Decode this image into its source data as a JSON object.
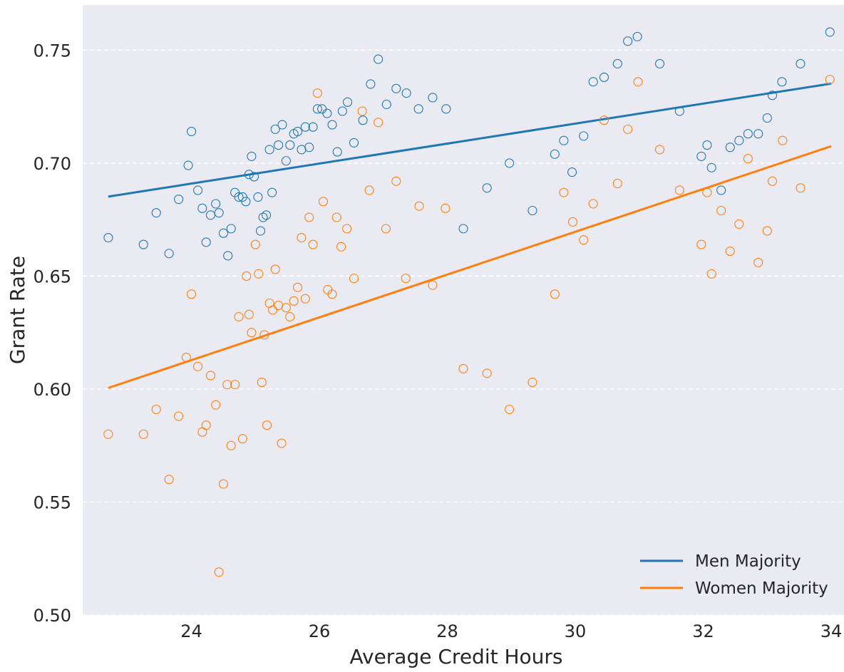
{
  "chart_data": {
    "type": "scatter",
    "title": "",
    "xlabel": "Average Credit Hours",
    "ylabel": "Grant Rate",
    "xlim": [
      22.3,
      34.2
    ],
    "ylim": [
      0.5,
      0.77
    ],
    "x_ticks": [
      24,
      26,
      28,
      30,
      32,
      34
    ],
    "x_tick_labels": [
      "24",
      "26",
      "28",
      "30",
      "32",
      "34"
    ],
    "y_ticks": [
      0.5,
      0.55,
      0.6,
      0.65,
      0.7,
      0.75
    ],
    "y_tick_labels": [
      "0.50",
      "0.55",
      "0.60",
      "0.65",
      "0.70",
      "0.75"
    ],
    "grid": "horizontal dashed, white",
    "background": "#eaeaf2",
    "legend": {
      "position": "bottom-right",
      "entries": [
        "Men Majority",
        "Women Majority"
      ]
    },
    "series": [
      {
        "name": "Men Majority",
        "color": "#1f77b4",
        "marker": "open-circle",
        "trend_line": {
          "x": [
            22.7,
            34.0
          ],
          "y": [
            0.6852,
            0.7352
          ]
        },
        "points": [
          [
            22.7,
            0.667
          ],
          [
            23.25,
            0.664
          ],
          [
            23.45,
            0.678
          ],
          [
            23.65,
            0.66
          ],
          [
            23.8,
            0.684
          ],
          [
            23.95,
            0.699
          ],
          [
            24.0,
            0.714
          ],
          [
            24.1,
            0.688
          ],
          [
            24.17,
            0.68
          ],
          [
            24.23,
            0.665
          ],
          [
            24.3,
            0.677
          ],
          [
            24.38,
            0.682
          ],
          [
            24.43,
            0.678
          ],
          [
            24.5,
            0.669
          ],
          [
            24.57,
            0.659
          ],
          [
            24.62,
            0.671
          ],
          [
            24.68,
            0.687
          ],
          [
            24.74,
            0.685
          ],
          [
            24.8,
            0.685
          ],
          [
            24.85,
            0.683
          ],
          [
            24.9,
            0.695
          ],
          [
            24.94,
            0.703
          ],
          [
            24.98,
            0.694
          ],
          [
            25.04,
            0.685
          ],
          [
            25.08,
            0.67
          ],
          [
            25.12,
            0.676
          ],
          [
            25.17,
            0.677
          ],
          [
            25.22,
            0.706
          ],
          [
            25.26,
            0.687
          ],
          [
            25.31,
            0.715
          ],
          [
            25.36,
            0.708
          ],
          [
            25.42,
            0.717
          ],
          [
            25.48,
            0.701
          ],
          [
            25.54,
            0.708
          ],
          [
            25.6,
            0.713
          ],
          [
            25.66,
            0.714
          ],
          [
            25.72,
            0.706
          ],
          [
            25.78,
            0.716
          ],
          [
            25.84,
            0.707
          ],
          [
            25.9,
            0.716
          ],
          [
            25.97,
            0.724
          ],
          [
            26.04,
            0.724
          ],
          [
            26.12,
            0.722
          ],
          [
            26.2,
            0.717
          ],
          [
            26.28,
            0.705
          ],
          [
            26.36,
            0.723
          ],
          [
            26.44,
            0.727
          ],
          [
            26.54,
            0.709
          ],
          [
            26.68,
            0.719
          ],
          [
            26.8,
            0.735
          ],
          [
            26.92,
            0.746
          ],
          [
            27.05,
            0.726
          ],
          [
            27.2,
            0.733
          ],
          [
            27.36,
            0.731
          ],
          [
            27.55,
            0.724
          ],
          [
            27.77,
            0.729
          ],
          [
            27.98,
            0.724
          ],
          [
            28.25,
            0.671
          ],
          [
            28.62,
            0.689
          ],
          [
            28.97,
            0.7
          ],
          [
            29.33,
            0.679
          ],
          [
            29.68,
            0.704
          ],
          [
            29.82,
            0.71
          ],
          [
            29.95,
            0.696
          ],
          [
            30.13,
            0.712
          ],
          [
            30.28,
            0.736
          ],
          [
            30.45,
            0.738
          ],
          [
            30.66,
            0.744
          ],
          [
            30.82,
            0.754
          ],
          [
            30.97,
            0.756
          ],
          [
            31.32,
            0.744
          ],
          [
            31.63,
            0.723
          ],
          [
            31.97,
            0.703
          ],
          [
            32.06,
            0.708
          ],
          [
            32.13,
            0.698
          ],
          [
            32.28,
            0.688
          ],
          [
            32.42,
            0.707
          ],
          [
            32.56,
            0.71
          ],
          [
            32.7,
            0.713
          ],
          [
            32.86,
            0.713
          ],
          [
            33.0,
            0.72
          ],
          [
            33.08,
            0.73
          ],
          [
            33.23,
            0.736
          ],
          [
            33.52,
            0.744
          ],
          [
            33.98,
            0.758
          ]
        ]
      },
      {
        "name": "Women Majority",
        "color": "#ff7f0e",
        "marker": "open-circle",
        "trend_line": {
          "x": [
            22.7,
            34.0
          ],
          "y": [
            0.6005,
            0.7075
          ]
        },
        "points": [
          [
            22.7,
            0.58
          ],
          [
            23.25,
            0.58
          ],
          [
            23.45,
            0.591
          ],
          [
            23.65,
            0.56
          ],
          [
            23.8,
            0.588
          ],
          [
            23.92,
            0.614
          ],
          [
            24.0,
            0.642
          ],
          [
            24.1,
            0.61
          ],
          [
            24.17,
            0.581
          ],
          [
            24.23,
            0.584
          ],
          [
            24.3,
            0.606
          ],
          [
            24.38,
            0.593
          ],
          [
            24.43,
            0.519
          ],
          [
            24.5,
            0.558
          ],
          [
            24.56,
            0.602
          ],
          [
            24.62,
            0.575
          ],
          [
            24.68,
            0.602
          ],
          [
            24.74,
            0.632
          ],
          [
            24.8,
            0.578
          ],
          [
            24.86,
            0.65
          ],
          [
            24.9,
            0.633
          ],
          [
            24.94,
            0.625
          ],
          [
            25.0,
            0.664
          ],
          [
            25.05,
            0.651
          ],
          [
            25.1,
            0.603
          ],
          [
            25.14,
            0.624
          ],
          [
            25.18,
            0.584
          ],
          [
            25.22,
            0.638
          ],
          [
            25.27,
            0.635
          ],
          [
            25.31,
            0.653
          ],
          [
            25.36,
            0.637
          ],
          [
            25.41,
            0.576
          ],
          [
            25.48,
            0.636
          ],
          [
            25.54,
            0.632
          ],
          [
            25.6,
            0.639
          ],
          [
            25.66,
            0.645
          ],
          [
            25.72,
            0.667
          ],
          [
            25.78,
            0.64
          ],
          [
            25.84,
            0.676
          ],
          [
            25.9,
            0.664
          ],
          [
            25.97,
            0.731
          ],
          [
            26.06,
            0.683
          ],
          [
            26.13,
            0.644
          ],
          [
            26.2,
            0.642
          ],
          [
            26.27,
            0.676
          ],
          [
            26.34,
            0.663
          ],
          [
            26.43,
            0.671
          ],
          [
            26.54,
            0.649
          ],
          [
            26.67,
            0.723
          ],
          [
            26.78,
            0.688
          ],
          [
            26.92,
            0.718
          ],
          [
            27.04,
            0.671
          ],
          [
            27.2,
            0.692
          ],
          [
            27.35,
            0.649
          ],
          [
            27.56,
            0.681
          ],
          [
            27.77,
            0.646
          ],
          [
            27.97,
            0.68
          ],
          [
            28.25,
            0.609
          ],
          [
            28.62,
            0.607
          ],
          [
            28.97,
            0.591
          ],
          [
            29.33,
            0.603
          ],
          [
            29.68,
            0.642
          ],
          [
            29.82,
            0.687
          ],
          [
            29.96,
            0.674
          ],
          [
            30.13,
            0.666
          ],
          [
            30.28,
            0.682
          ],
          [
            30.45,
            0.719
          ],
          [
            30.66,
            0.691
          ],
          [
            30.82,
            0.715
          ],
          [
            30.98,
            0.736
          ],
          [
            31.32,
            0.706
          ],
          [
            31.63,
            0.688
          ],
          [
            31.97,
            0.664
          ],
          [
            32.06,
            0.687
          ],
          [
            32.13,
            0.651
          ],
          [
            32.28,
            0.679
          ],
          [
            32.42,
            0.661
          ],
          [
            32.56,
            0.673
          ],
          [
            32.7,
            0.702
          ],
          [
            32.86,
            0.656
          ],
          [
            33.0,
            0.67
          ],
          [
            33.08,
            0.692
          ],
          [
            33.24,
            0.71
          ],
          [
            33.52,
            0.689
          ],
          [
            33.98,
            0.737
          ]
        ]
      }
    ]
  }
}
